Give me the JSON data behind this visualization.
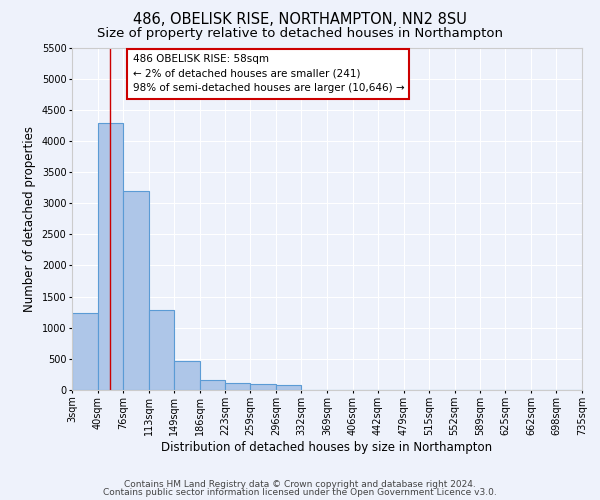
{
  "title": "486, OBELISK RISE, NORTHAMPTON, NN2 8SU",
  "subtitle": "Size of property relative to detached houses in Northampton",
  "xlabel": "Distribution of detached houses by size in Northampton",
  "ylabel": "Number of detached properties",
  "bins": [
    3,
    40,
    76,
    113,
    149,
    186,
    223,
    259,
    296,
    332,
    369,
    406,
    442,
    479,
    515,
    552,
    589,
    625,
    662,
    698,
    735
  ],
  "counts": [
    1240,
    4280,
    3200,
    1280,
    460,
    155,
    120,
    100,
    80,
    0,
    0,
    0,
    0,
    0,
    0,
    0,
    0,
    0,
    0,
    0
  ],
  "bar_color": "#aec6e8",
  "bar_edge_color": "#5b9bd5",
  "property_line_x": 58,
  "property_line_color": "#cc0000",
  "annotation_text": "486 OBELISK RISE: 58sqm\n← 2% of detached houses are smaller (241)\n98% of semi-detached houses are larger (10,646) →",
  "annotation_box_color": "#ffffff",
  "annotation_box_edge_color": "#cc0000",
  "ylim": [
    0,
    5500
  ],
  "yticks": [
    0,
    500,
    1000,
    1500,
    2000,
    2500,
    3000,
    3500,
    4000,
    4500,
    5000,
    5500
  ],
  "tick_labels": [
    "3sqm",
    "40sqm",
    "76sqm",
    "113sqm",
    "149sqm",
    "186sqm",
    "223sqm",
    "259sqm",
    "296sqm",
    "332sqm",
    "369sqm",
    "406sqm",
    "442sqm",
    "479sqm",
    "515sqm",
    "552sqm",
    "589sqm",
    "625sqm",
    "662sqm",
    "698sqm",
    "735sqm"
  ],
  "footer_line1": "Contains HM Land Registry data © Crown copyright and database right 2024.",
  "footer_line2": "Contains public sector information licensed under the Open Government Licence v3.0.",
  "bg_color": "#eef2fb",
  "plot_bg_color": "#eef2fb",
  "title_fontsize": 10.5,
  "subtitle_fontsize": 9.5,
  "axis_label_fontsize": 8.5,
  "tick_fontsize": 7,
  "annotation_fontsize": 7.5,
  "footer_fontsize": 6.5
}
